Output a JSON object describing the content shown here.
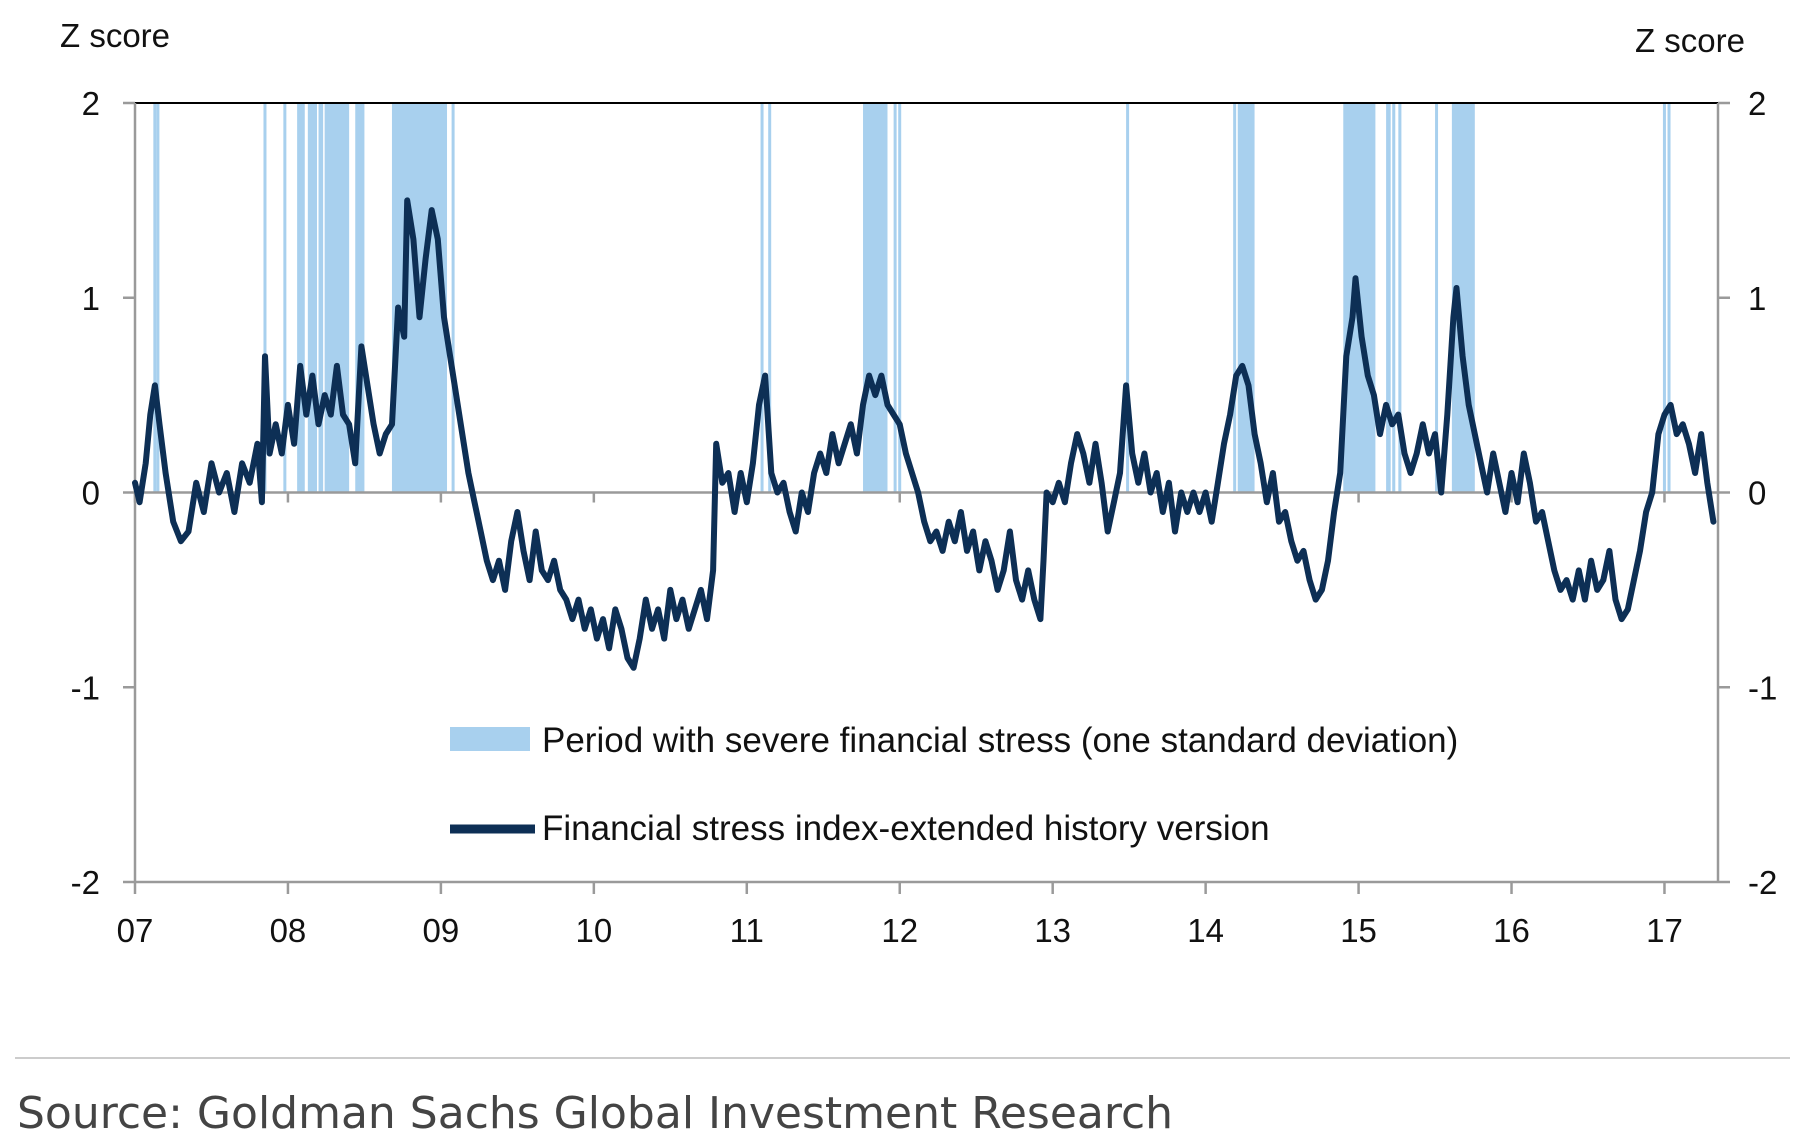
{
  "chart_data": {
    "type": "line",
    "y_axis_left_label": "Z score",
    "y_axis_right_label": "Z score",
    "ylim": [
      -2,
      2
    ],
    "y_ticks": [
      2,
      1,
      0,
      -1,
      -2
    ],
    "y_tick_labels": [
      "2",
      "1",
      "0",
      "-1",
      "-2"
    ],
    "xlim": [
      2007.0,
      2017.35
    ],
    "x_ticks": [
      2007,
      2008,
      2009,
      2010,
      2011,
      2012,
      2013,
      2014,
      2015,
      2016,
      2017
    ],
    "x_tick_labels": [
      "07",
      "08",
      "09",
      "10",
      "11",
      "12",
      "13",
      "14",
      "15",
      "16",
      "17"
    ],
    "grid": false,
    "legend_placement": "bottom-center",
    "colors": {
      "line": "#0d2f55",
      "shade": "#a8d0ee",
      "axis": "#9a9a9a",
      "top_border": "#000000"
    },
    "stress_periods": [
      [
        2007.12,
        2007.125
      ],
      [
        2007.14,
        2007.145
      ],
      [
        2007.84,
        2007.845
      ],
      [
        2007.97,
        2007.975
      ],
      [
        2008.06,
        2008.11
      ],
      [
        2008.13,
        2008.19
      ],
      [
        2008.2,
        2008.23
      ],
      [
        2008.24,
        2008.4
      ],
      [
        2008.44,
        2008.5
      ],
      [
        2008.68,
        2009.04
      ],
      [
        2009.07,
        2009.075
      ],
      [
        2011.09,
        2011.095
      ],
      [
        2011.14,
        2011.145
      ],
      [
        2011.76,
        2011.92
      ],
      [
        2011.96,
        2011.965
      ],
      [
        2011.99,
        2011.995
      ],
      [
        2013.48,
        2013.485
      ],
      [
        2014.18,
        2014.185
      ],
      [
        2014.21,
        2014.32
      ],
      [
        2014.9,
        2015.11
      ],
      [
        2015.18,
        2015.21
      ],
      [
        2015.22,
        2015.24
      ],
      [
        2015.26,
        2015.28
      ],
      [
        2015.5,
        2015.505
      ],
      [
        2015.61,
        2015.76
      ],
      [
        2016.99,
        2016.995
      ],
      [
        2017.02,
        2017.025
      ]
    ],
    "series": [
      {
        "name": "Financial stress index-extended history version",
        "points": [
          [
            2007.0,
            0.05
          ],
          [
            2007.03,
            -0.05
          ],
          [
            2007.07,
            0.15
          ],
          [
            2007.1,
            0.4
          ],
          [
            2007.13,
            0.55
          ],
          [
            2007.16,
            0.35
          ],
          [
            2007.2,
            0.1
          ],
          [
            2007.25,
            -0.15
          ],
          [
            2007.3,
            -0.25
          ],
          [
            2007.35,
            -0.2
          ],
          [
            2007.4,
            0.05
          ],
          [
            2007.45,
            -0.1
          ],
          [
            2007.5,
            0.15
          ],
          [
            2007.55,
            0.0
          ],
          [
            2007.6,
            0.1
          ],
          [
            2007.65,
            -0.1
          ],
          [
            2007.7,
            0.15
          ],
          [
            2007.75,
            0.05
          ],
          [
            2007.8,
            0.25
          ],
          [
            2007.83,
            -0.05
          ],
          [
            2007.85,
            0.7
          ],
          [
            2007.88,
            0.2
          ],
          [
            2007.92,
            0.35
          ],
          [
            2007.96,
            0.2
          ],
          [
            2008.0,
            0.45
          ],
          [
            2008.04,
            0.25
          ],
          [
            2008.08,
            0.65
          ],
          [
            2008.12,
            0.4
          ],
          [
            2008.16,
            0.6
          ],
          [
            2008.2,
            0.35
          ],
          [
            2008.24,
            0.5
          ],
          [
            2008.28,
            0.4
          ],
          [
            2008.32,
            0.65
          ],
          [
            2008.36,
            0.4
          ],
          [
            2008.4,
            0.35
          ],
          [
            2008.44,
            0.15
          ],
          [
            2008.48,
            0.75
          ],
          [
            2008.52,
            0.55
          ],
          [
            2008.56,
            0.35
          ],
          [
            2008.6,
            0.2
          ],
          [
            2008.64,
            0.3
          ],
          [
            2008.68,
            0.35
          ],
          [
            2008.72,
            0.95
          ],
          [
            2008.76,
            0.8
          ],
          [
            2008.78,
            1.5
          ],
          [
            2008.82,
            1.3
          ],
          [
            2008.86,
            0.9
          ],
          [
            2008.9,
            1.2
          ],
          [
            2008.94,
            1.45
          ],
          [
            2008.98,
            1.3
          ],
          [
            2009.02,
            0.9
          ],
          [
            2009.06,
            0.7
          ],
          [
            2009.1,
            0.5
          ],
          [
            2009.14,
            0.3
          ],
          [
            2009.18,
            0.1
          ],
          [
            2009.22,
            -0.05
          ],
          [
            2009.26,
            -0.2
          ],
          [
            2009.3,
            -0.35
          ],
          [
            2009.34,
            -0.45
          ],
          [
            2009.38,
            -0.35
          ],
          [
            2009.42,
            -0.5
          ],
          [
            2009.46,
            -0.25
          ],
          [
            2009.5,
            -0.1
          ],
          [
            2009.54,
            -0.3
          ],
          [
            2009.58,
            -0.45
          ],
          [
            2009.62,
            -0.2
          ],
          [
            2009.66,
            -0.4
          ],
          [
            2009.7,
            -0.45
          ],
          [
            2009.74,
            -0.35
          ],
          [
            2009.78,
            -0.5
          ],
          [
            2009.82,
            -0.55
          ],
          [
            2009.86,
            -0.65
          ],
          [
            2009.9,
            -0.55
          ],
          [
            2009.94,
            -0.7
          ],
          [
            2009.98,
            -0.6
          ],
          [
            2010.02,
            -0.75
          ],
          [
            2010.06,
            -0.65
          ],
          [
            2010.1,
            -0.8
          ],
          [
            2010.14,
            -0.6
          ],
          [
            2010.18,
            -0.7
          ],
          [
            2010.22,
            -0.85
          ],
          [
            2010.26,
            -0.9
          ],
          [
            2010.3,
            -0.75
          ],
          [
            2010.34,
            -0.55
          ],
          [
            2010.38,
            -0.7
          ],
          [
            2010.42,
            -0.6
          ],
          [
            2010.46,
            -0.75
          ],
          [
            2010.5,
            -0.5
          ],
          [
            2010.54,
            -0.65
          ],
          [
            2010.58,
            -0.55
          ],
          [
            2010.62,
            -0.7
          ],
          [
            2010.66,
            -0.6
          ],
          [
            2010.7,
            -0.5
          ],
          [
            2010.74,
            -0.65
          ],
          [
            2010.78,
            -0.4
          ],
          [
            2010.8,
            0.25
          ],
          [
            2010.84,
            0.05
          ],
          [
            2010.88,
            0.1
          ],
          [
            2010.92,
            -0.1
          ],
          [
            2010.96,
            0.1
          ],
          [
            2011.0,
            -0.05
          ],
          [
            2011.04,
            0.15
          ],
          [
            2011.08,
            0.45
          ],
          [
            2011.12,
            0.6
          ],
          [
            2011.16,
            0.1
          ],
          [
            2011.2,
            0.0
          ],
          [
            2011.24,
            0.05
          ],
          [
            2011.28,
            -0.1
          ],
          [
            2011.32,
            -0.2
          ],
          [
            2011.36,
            0.0
          ],
          [
            2011.4,
            -0.1
          ],
          [
            2011.44,
            0.1
          ],
          [
            2011.48,
            0.2
          ],
          [
            2011.52,
            0.1
          ],
          [
            2011.56,
            0.3
          ],
          [
            2011.6,
            0.15
          ],
          [
            2011.64,
            0.25
          ],
          [
            2011.68,
            0.35
          ],
          [
            2011.72,
            0.2
          ],
          [
            2011.76,
            0.45
          ],
          [
            2011.8,
            0.6
          ],
          [
            2011.84,
            0.5
          ],
          [
            2011.88,
            0.6
          ],
          [
            2011.92,
            0.45
          ],
          [
            2011.96,
            0.4
          ],
          [
            2012.0,
            0.35
          ],
          [
            2012.04,
            0.2
          ],
          [
            2012.08,
            0.1
          ],
          [
            2012.12,
            0.0
          ],
          [
            2012.16,
            -0.15
          ],
          [
            2012.2,
            -0.25
          ],
          [
            2012.24,
            -0.2
          ],
          [
            2012.28,
            -0.3
          ],
          [
            2012.32,
            -0.15
          ],
          [
            2012.36,
            -0.25
          ],
          [
            2012.4,
            -0.1
          ],
          [
            2012.44,
            -0.3
          ],
          [
            2012.48,
            -0.2
          ],
          [
            2012.52,
            -0.4
          ],
          [
            2012.56,
            -0.25
          ],
          [
            2012.6,
            -0.35
          ],
          [
            2012.64,
            -0.5
          ],
          [
            2012.68,
            -0.4
          ],
          [
            2012.72,
            -0.2
          ],
          [
            2012.76,
            -0.45
          ],
          [
            2012.8,
            -0.55
          ],
          [
            2012.84,
            -0.4
          ],
          [
            2012.88,
            -0.55
          ],
          [
            2012.92,
            -0.65
          ],
          [
            2012.94,
            -0.35
          ],
          [
            2012.96,
            0.0
          ],
          [
            2013.0,
            -0.05
          ],
          [
            2013.04,
            0.05
          ],
          [
            2013.08,
            -0.05
          ],
          [
            2013.12,
            0.15
          ],
          [
            2013.16,
            0.3
          ],
          [
            2013.2,
            0.2
          ],
          [
            2013.24,
            0.05
          ],
          [
            2013.28,
            0.25
          ],
          [
            2013.32,
            0.05
          ],
          [
            2013.36,
            -0.2
          ],
          [
            2013.4,
            -0.05
          ],
          [
            2013.44,
            0.1
          ],
          [
            2013.48,
            0.55
          ],
          [
            2013.52,
            0.2
          ],
          [
            2013.56,
            0.05
          ],
          [
            2013.6,
            0.2
          ],
          [
            2013.64,
            0.0
          ],
          [
            2013.68,
            0.1
          ],
          [
            2013.72,
            -0.1
          ],
          [
            2013.76,
            0.05
          ],
          [
            2013.8,
            -0.2
          ],
          [
            2013.84,
            0.0
          ],
          [
            2013.88,
            -0.1
          ],
          [
            2013.92,
            0.0
          ],
          [
            2013.96,
            -0.1
          ],
          [
            2014.0,
            0.0
          ],
          [
            2014.04,
            -0.15
          ],
          [
            2014.08,
            0.05
          ],
          [
            2014.12,
            0.25
          ],
          [
            2014.16,
            0.4
          ],
          [
            2014.2,
            0.6
          ],
          [
            2014.24,
            0.65
          ],
          [
            2014.28,
            0.55
          ],
          [
            2014.32,
            0.3
          ],
          [
            2014.36,
            0.15
          ],
          [
            2014.4,
            -0.05
          ],
          [
            2014.44,
            0.1
          ],
          [
            2014.48,
            -0.15
          ],
          [
            2014.52,
            -0.1
          ],
          [
            2014.56,
            -0.25
          ],
          [
            2014.6,
            -0.35
          ],
          [
            2014.64,
            -0.3
          ],
          [
            2014.68,
            -0.45
          ],
          [
            2014.72,
            -0.55
          ],
          [
            2014.76,
            -0.5
          ],
          [
            2014.8,
            -0.35
          ],
          [
            2014.84,
            -0.1
          ],
          [
            2014.88,
            0.1
          ],
          [
            2014.92,
            0.7
          ],
          [
            2014.96,
            0.9
          ],
          [
            2014.98,
            1.1
          ],
          [
            2015.02,
            0.8
          ],
          [
            2015.06,
            0.6
          ],
          [
            2015.1,
            0.5
          ],
          [
            2015.14,
            0.3
          ],
          [
            2015.18,
            0.45
          ],
          [
            2015.22,
            0.35
          ],
          [
            2015.26,
            0.4
          ],
          [
            2015.3,
            0.2
          ],
          [
            2015.34,
            0.1
          ],
          [
            2015.38,
            0.2
          ],
          [
            2015.42,
            0.35
          ],
          [
            2015.46,
            0.2
          ],
          [
            2015.5,
            0.3
          ],
          [
            2015.54,
            0.0
          ],
          [
            2015.58,
            0.4
          ],
          [
            2015.62,
            0.9
          ],
          [
            2015.64,
            1.05
          ],
          [
            2015.68,
            0.7
          ],
          [
            2015.72,
            0.45
          ],
          [
            2015.76,
            0.3
          ],
          [
            2015.8,
            0.15
          ],
          [
            2015.84,
            0.0
          ],
          [
            2015.88,
            0.2
          ],
          [
            2015.92,
            0.05
          ],
          [
            2015.96,
            -0.1
          ],
          [
            2016.0,
            0.1
          ],
          [
            2016.04,
            -0.05
          ],
          [
            2016.08,
            0.2
          ],
          [
            2016.12,
            0.05
          ],
          [
            2016.16,
            -0.15
          ],
          [
            2016.2,
            -0.1
          ],
          [
            2016.24,
            -0.25
          ],
          [
            2016.28,
            -0.4
          ],
          [
            2016.32,
            -0.5
          ],
          [
            2016.36,
            -0.45
          ],
          [
            2016.4,
            -0.55
          ],
          [
            2016.44,
            -0.4
          ],
          [
            2016.48,
            -0.55
          ],
          [
            2016.52,
            -0.35
          ],
          [
            2016.56,
            -0.5
          ],
          [
            2016.6,
            -0.45
          ],
          [
            2016.64,
            -0.3
          ],
          [
            2016.68,
            -0.55
          ],
          [
            2016.72,
            -0.65
          ],
          [
            2016.76,
            -0.6
          ],
          [
            2016.8,
            -0.45
          ],
          [
            2016.84,
            -0.3
          ],
          [
            2016.88,
            -0.1
          ],
          [
            2016.92,
            0.0
          ],
          [
            2016.96,
            0.3
          ],
          [
            2017.0,
            0.4
          ],
          [
            2017.04,
            0.45
          ],
          [
            2017.08,
            0.3
          ],
          [
            2017.12,
            0.35
          ],
          [
            2017.16,
            0.25
          ],
          [
            2017.2,
            0.1
          ],
          [
            2017.24,
            0.3
          ],
          [
            2017.28,
            0.05
          ],
          [
            2017.32,
            -0.15
          ]
        ]
      }
    ],
    "legend": [
      {
        "kind": "shade",
        "label": "Period with severe financial stress (one standard deviation)"
      },
      {
        "kind": "line",
        "label": "Financial stress index-extended history version"
      }
    ]
  },
  "footer": {
    "source": "Source: Goldman Sachs Global Investment Research"
  },
  "colors": {
    "divider": "#cccccc",
    "text": "#111111"
  }
}
